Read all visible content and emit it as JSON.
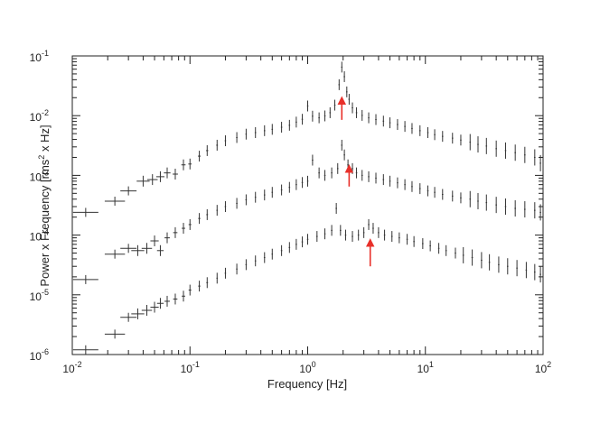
{
  "chart_data": {
    "type": "scatter",
    "xlabel": "Frequency [Hz]",
    "ylabel": {
      "prefix": "Power x Frequency [rms",
      "sup": "2",
      "suffix": " x Hz]"
    },
    "xscale": "log",
    "yscale": "log",
    "xlim": [
      0.01,
      100
    ],
    "ylim": [
      1e-06,
      0.1
    ],
    "x_ticks": [
      {
        "value": 0.01,
        "base": "10",
        "exp": "-2"
      },
      {
        "value": 0.1,
        "base": "10",
        "exp": "-1"
      },
      {
        "value": 1,
        "base": "10",
        "exp": "0"
      },
      {
        "value": 10,
        "base": "10",
        "exp": "1"
      },
      {
        "value": 100,
        "base": "10",
        "exp": "2"
      }
    ],
    "y_ticks": [
      {
        "value": 1e-06,
        "base": "10",
        "exp": "-6"
      },
      {
        "value": 1e-05,
        "base": "10",
        "exp": "-5"
      },
      {
        "value": 0.0001,
        "base": "10",
        "exp": "-4"
      },
      {
        "value": 0.001,
        "base": "10",
        "exp": "-3"
      },
      {
        "value": 0.01,
        "base": "10",
        "exp": "-2"
      },
      {
        "value": 0.1,
        "base": "10",
        "exp": "-1"
      }
    ],
    "grid": false,
    "colors": {
      "data": "#333333",
      "arrow": "#e8302a",
      "axis": "#222222"
    },
    "series": [
      {
        "points": [
          {
            "x": 0.013,
            "y": 0.00024
          },
          {
            "x": 0.023,
            "y": 0.00037
          },
          {
            "x": 0.03,
            "y": 0.00055
          },
          {
            "x": 0.04,
            "y": 0.0008
          },
          {
            "x": 0.048,
            "y": 0.00085
          },
          {
            "x": 0.056,
            "y": 0.00095
          },
          {
            "x": 0.064,
            "y": 0.0011
          },
          {
            "x": 0.075,
            "y": 0.00105
          },
          {
            "x": 0.088,
            "y": 0.0015
          },
          {
            "x": 0.1,
            "y": 0.00155
          },
          {
            "x": 0.12,
            "y": 0.0021
          },
          {
            "x": 0.14,
            "y": 0.0026
          },
          {
            "x": 0.17,
            "y": 0.0032
          },
          {
            "x": 0.2,
            "y": 0.0038
          },
          {
            "x": 0.25,
            "y": 0.0043
          },
          {
            "x": 0.3,
            "y": 0.0049
          },
          {
            "x": 0.36,
            "y": 0.0052
          },
          {
            "x": 0.43,
            "y": 0.0056
          },
          {
            "x": 0.5,
            "y": 0.0059
          },
          {
            "x": 0.6,
            "y": 0.0064
          },
          {
            "x": 0.7,
            "y": 0.0069
          },
          {
            "x": 0.8,
            "y": 0.0078
          },
          {
            "x": 0.9,
            "y": 0.0087
          },
          {
            "x": 1.0,
            "y": 0.0145
          },
          {
            "x": 1.1,
            "y": 0.0098
          },
          {
            "x": 1.25,
            "y": 0.0092
          },
          {
            "x": 1.4,
            "y": 0.0099
          },
          {
            "x": 1.55,
            "y": 0.0112
          },
          {
            "x": 1.7,
            "y": 0.015
          },
          {
            "x": 1.85,
            "y": 0.033
          },
          {
            "x": 1.95,
            "y": 0.065
          },
          {
            "x": 2.05,
            "y": 0.045
          },
          {
            "x": 2.15,
            "y": 0.025
          },
          {
            "x": 2.25,
            "y": 0.0188
          },
          {
            "x": 2.4,
            "y": 0.0135
          },
          {
            "x": 2.6,
            "y": 0.0112
          },
          {
            "x": 2.9,
            "y": 0.0101
          },
          {
            "x": 3.3,
            "y": 0.0092
          },
          {
            "x": 3.8,
            "y": 0.0086
          },
          {
            "x": 4.4,
            "y": 0.0081
          },
          {
            "x": 5.0,
            "y": 0.0076
          },
          {
            "x": 5.8,
            "y": 0.0071
          },
          {
            "x": 6.7,
            "y": 0.0066
          },
          {
            "x": 7.7,
            "y": 0.0061
          },
          {
            "x": 9,
            "y": 0.0056
          },
          {
            "x": 10.5,
            "y": 0.0052
          },
          {
            "x": 12,
            "y": 0.0048
          },
          {
            "x": 14,
            "y": 0.0045
          },
          {
            "x": 17,
            "y": 0.0042
          },
          {
            "x": 20,
            "y": 0.0039
          },
          {
            "x": 24,
            "y": 0.0036
          },
          {
            "x": 28,
            "y": 0.0033
          },
          {
            "x": 33,
            "y": 0.0031
          },
          {
            "x": 40,
            "y": 0.0028
          },
          {
            "x": 48,
            "y": 0.0026
          },
          {
            "x": 58,
            "y": 0.0024
          },
          {
            "x": 70,
            "y": 0.0022
          },
          {
            "x": 85,
            "y": 0.002
          },
          {
            "x": 95,
            "y": 0.0016
          }
        ]
      },
      {
        "points": [
          {
            "x": 0.013,
            "y": 1.8e-05
          },
          {
            "x": 0.023,
            "y": 4.8e-05
          },
          {
            "x": 0.03,
            "y": 6e-05
          },
          {
            "x": 0.036,
            "y": 5.5e-05
          },
          {
            "x": 0.043,
            "y": 6e-05
          },
          {
            "x": 0.05,
            "y": 8e-05
          },
          {
            "x": 0.056,
            "y": 5.5e-05
          },
          {
            "x": 0.064,
            "y": 9e-05
          },
          {
            "x": 0.075,
            "y": 0.00011
          },
          {
            "x": 0.088,
            "y": 0.00013
          },
          {
            "x": 0.1,
            "y": 0.00015
          },
          {
            "x": 0.12,
            "y": 0.00019
          },
          {
            "x": 0.14,
            "y": 0.00022
          },
          {
            "x": 0.17,
            "y": 0.00026
          },
          {
            "x": 0.2,
            "y": 0.0003
          },
          {
            "x": 0.25,
            "y": 0.00034
          },
          {
            "x": 0.3,
            "y": 0.00039
          },
          {
            "x": 0.36,
            "y": 0.00043
          },
          {
            "x": 0.43,
            "y": 0.00047
          },
          {
            "x": 0.5,
            "y": 0.00052
          },
          {
            "x": 0.6,
            "y": 0.00057
          },
          {
            "x": 0.7,
            "y": 0.00063
          },
          {
            "x": 0.8,
            "y": 0.0007
          },
          {
            "x": 0.9,
            "y": 0.00076
          },
          {
            "x": 1.0,
            "y": 0.0008
          },
          {
            "x": 1.1,
            "y": 0.0018
          },
          {
            "x": 1.25,
            "y": 0.0011
          },
          {
            "x": 1.4,
            "y": 0.001
          },
          {
            "x": 1.6,
            "y": 0.0011
          },
          {
            "x": 1.8,
            "y": 0.0013
          },
          {
            "x": 1.95,
            "y": 0.0032
          },
          {
            "x": 2.05,
            "y": 0.0022
          },
          {
            "x": 2.2,
            "y": 0.0015
          },
          {
            "x": 2.4,
            "y": 0.0013
          },
          {
            "x": 2.6,
            "y": 0.0011
          },
          {
            "x": 2.9,
            "y": 0.001
          },
          {
            "x": 3.3,
            "y": 0.00095
          },
          {
            "x": 3.8,
            "y": 0.0009
          },
          {
            "x": 4.4,
            "y": 0.00085
          },
          {
            "x": 5.0,
            "y": 0.0008
          },
          {
            "x": 5.8,
            "y": 0.00075
          },
          {
            "x": 6.7,
            "y": 0.0007
          },
          {
            "x": 7.7,
            "y": 0.00065
          },
          {
            "x": 9,
            "y": 0.0006
          },
          {
            "x": 10.5,
            "y": 0.00055
          },
          {
            "x": 12,
            "y": 0.00052
          },
          {
            "x": 14,
            "y": 0.00048
          },
          {
            "x": 17,
            "y": 0.00045
          },
          {
            "x": 20,
            "y": 0.00042
          },
          {
            "x": 24,
            "y": 0.0004
          },
          {
            "x": 28,
            "y": 0.00037
          },
          {
            "x": 33,
            "y": 0.00035
          },
          {
            "x": 40,
            "y": 0.00032
          },
          {
            "x": 48,
            "y": 0.0003
          },
          {
            "x": 58,
            "y": 0.00028
          },
          {
            "x": 70,
            "y": 0.00027
          },
          {
            "x": 85,
            "y": 0.00026
          },
          {
            "x": 95,
            "y": 0.00024
          }
        ]
      },
      {
        "points": [
          {
            "x": 0.013,
            "y": 1.2e-06
          },
          {
            "x": 0.023,
            "y": 2.2e-06
          },
          {
            "x": 0.03,
            "y": 4.2e-06
          },
          {
            "x": 0.036,
            "y": 4.8e-06
          },
          {
            "x": 0.043,
            "y": 5.5e-06
          },
          {
            "x": 0.05,
            "y": 6.2e-06
          },
          {
            "x": 0.056,
            "y": 7.2e-06
          },
          {
            "x": 0.064,
            "y": 7.8e-06
          },
          {
            "x": 0.075,
            "y": 8.5e-06
          },
          {
            "x": 0.088,
            "y": 9.5e-06
          },
          {
            "x": 0.1,
            "y": 1.2e-05
          },
          {
            "x": 0.12,
            "y": 1.4e-05
          },
          {
            "x": 0.14,
            "y": 1.6e-05
          },
          {
            "x": 0.17,
            "y": 1.9e-05
          },
          {
            "x": 0.2,
            "y": 2.3e-05
          },
          {
            "x": 0.25,
            "y": 2.7e-05
          },
          {
            "x": 0.3,
            "y": 3.2e-05
          },
          {
            "x": 0.36,
            "y": 3.7e-05
          },
          {
            "x": 0.43,
            "y": 4.2e-05
          },
          {
            "x": 0.5,
            "y": 4.8e-05
          },
          {
            "x": 0.6,
            "y": 5.5e-05
          },
          {
            "x": 0.7,
            "y": 6.2e-05
          },
          {
            "x": 0.8,
            "y": 7e-05
          },
          {
            "x": 0.9,
            "y": 7.7e-05
          },
          {
            "x": 1.0,
            "y": 8.5e-05
          },
          {
            "x": 1.2,
            "y": 9.5e-05
          },
          {
            "x": 1.4,
            "y": 0.000105
          },
          {
            "x": 1.6,
            "y": 0.00012
          },
          {
            "x": 1.75,
            "y": 0.00028
          },
          {
            "x": 1.9,
            "y": 0.00012
          },
          {
            "x": 2.1,
            "y": 0.0001
          },
          {
            "x": 2.4,
            "y": 9.5e-05
          },
          {
            "x": 2.7,
            "y": 0.0001
          },
          {
            "x": 3.0,
            "y": 0.00011
          },
          {
            "x": 3.3,
            "y": 0.00015
          },
          {
            "x": 3.6,
            "y": 0.00013
          },
          {
            "x": 4.0,
            "y": 0.00011
          },
          {
            "x": 4.5,
            "y": 0.0001
          },
          {
            "x": 5.2,
            "y": 9.5e-05
          },
          {
            "x": 6.0,
            "y": 9e-05
          },
          {
            "x": 7.0,
            "y": 8.5e-05
          },
          {
            "x": 8.0,
            "y": 7.8e-05
          },
          {
            "x": 9.5,
            "y": 7.2e-05
          },
          {
            "x": 11,
            "y": 6.6e-05
          },
          {
            "x": 13,
            "y": 6e-05
          },
          {
            "x": 15,
            "y": 5.5e-05
          },
          {
            "x": 18,
            "y": 5e-05
          },
          {
            "x": 21,
            "y": 4.6e-05
          },
          {
            "x": 25,
            "y": 4.2e-05
          },
          {
            "x": 30,
            "y": 3.8e-05
          },
          {
            "x": 35,
            "y": 3.5e-05
          },
          {
            "x": 42,
            "y": 3.2e-05
          },
          {
            "x": 50,
            "y": 3e-05
          },
          {
            "x": 60,
            "y": 2.8e-05
          },
          {
            "x": 72,
            "y": 2.6e-05
          },
          {
            "x": 85,
            "y": 2.4e-05
          },
          {
            "x": 95,
            "y": 2.2e-05
          }
        ]
      }
    ],
    "annotations": [
      {
        "type": "arrow",
        "x": 1.95,
        "y_from": 0.0085,
        "y_to": 0.018
      },
      {
        "type": "arrow",
        "x": 2.25,
        "y_from": 0.00065,
        "y_to": 0.0013
      },
      {
        "type": "arrow",
        "x": 3.4,
        "y_from": 3e-05,
        "y_to": 7.5e-05
      }
    ]
  }
}
